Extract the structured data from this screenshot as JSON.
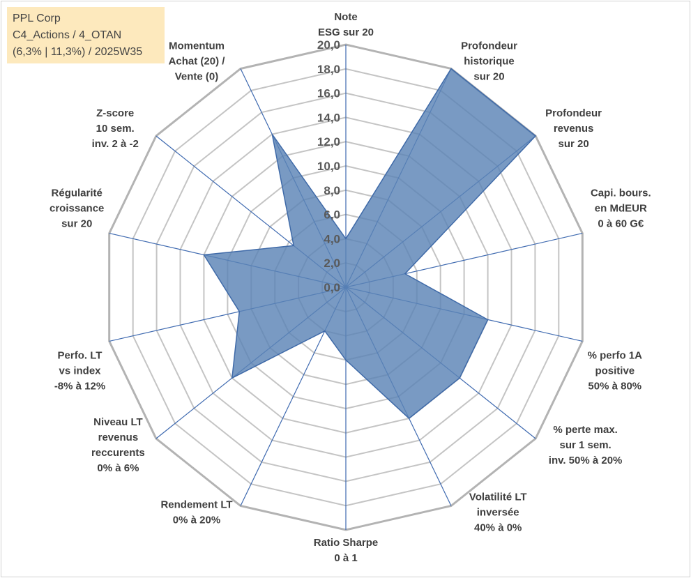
{
  "info": {
    "line1": "PPL Corp",
    "line2": "C4_Actions / 4_OTAN",
    "line3": "(6,3% | 11,3%) / 2025W35"
  },
  "chart_data": {
    "type": "radar",
    "axes": [
      {
        "label": [
          "Note",
          "ESG sur 20"
        ]
      },
      {
        "label": [
          "Profondeur",
          "historique",
          "sur 20"
        ]
      },
      {
        "label": [
          "Profondeur",
          "revenus",
          "sur 20"
        ]
      },
      {
        "label": [
          "Capi. bours.",
          "en MdEUR",
          "0 à 60 G€"
        ]
      },
      {
        "label": [
          "% perfo 1A",
          "positive",
          "50% à 80%"
        ]
      },
      {
        "label": [
          "% perte max.",
          "sur 1 sem.",
          "inv. 50% à 20%"
        ]
      },
      {
        "label": [
          "Volatilité LT",
          "inversée",
          "40% à 0%"
        ]
      },
      {
        "label": [
          "Ratio Sharpe",
          "0 à 1"
        ]
      },
      {
        "label": [
          "Rendement LT",
          "0% à 20%"
        ]
      },
      {
        "label": [
          "Niveau LT",
          "revenus",
          "reccurents",
          "0% à 6%"
        ]
      },
      {
        "label": [
          "Perfo. LT",
          "vs index",
          "-8% à 12%"
        ]
      },
      {
        "label": [
          "Régularité",
          "croissance",
          "sur 20"
        ]
      },
      {
        "label": [
          "Z-score",
          "10 sem.",
          "inv. 2 à -2"
        ]
      },
      {
        "label": [
          "Momentum",
          "Achat (20) /",
          "Vente (0)"
        ]
      }
    ],
    "values": [
      4.0,
      20.0,
      20.0,
      5.0,
      12.0,
      12.0,
      12.0,
      6.0,
      4.0,
      12.0,
      9.0,
      12.0,
      5.5,
      14.0
    ],
    "range": [
      0,
      20
    ],
    "ticks": [
      "0,0",
      "2,0",
      "4,0",
      "6,0",
      "8,0",
      "10,0",
      "12,0",
      "14,0",
      "16,0",
      "18,0",
      "20,0"
    ],
    "colors": {
      "fill": "#5b84b6",
      "stroke": "#3f6aa8",
      "spoke": "#3f6ab0",
      "grid": "#c4c4c4",
      "outer": "#b3b3b3"
    }
  }
}
